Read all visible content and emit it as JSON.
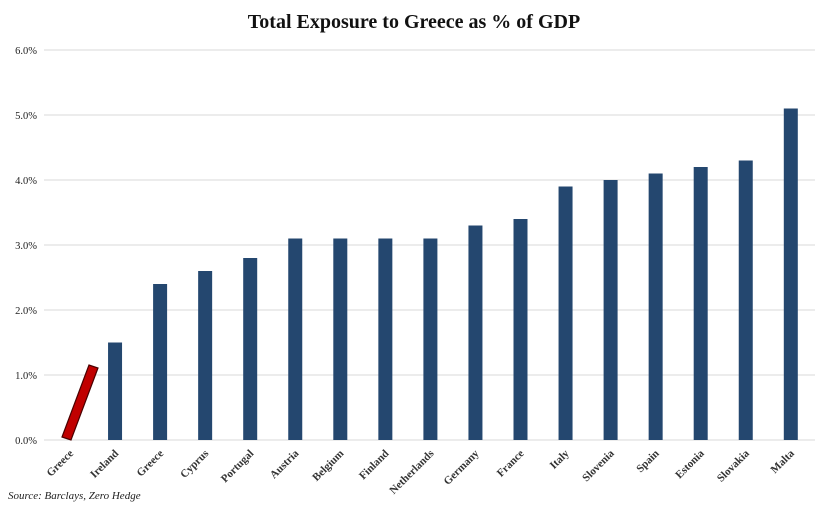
{
  "chart_data": {
    "type": "bar",
    "title": "Total Exposure to Greece as % of GDP",
    "categories": [
      "Greece",
      "Ireland",
      "Greece",
      "Cyprus",
      "Portugal",
      "Austria",
      "Belgium",
      "Finland",
      "Netherlands",
      "Germany",
      "France",
      "Italy",
      "Slovenia",
      "Spain",
      "Estonia",
      "Slovakia",
      "Malta"
    ],
    "values": [
      null,
      1.5,
      2.4,
      2.6,
      2.8,
      3.1,
      3.1,
      3.1,
      3.1,
      3.3,
      3.4,
      3.9,
      4.0,
      4.1,
      4.2,
      4.3,
      5.1
    ],
    "annotation": "red slanted marker at first 'Greece' category",
    "ylim": [
      0,
      6
    ],
    "yticks": [
      "0.0%",
      "1.0%",
      "2.0%",
      "3.0%",
      "4.0%",
      "5.0%",
      "6.0%"
    ],
    "xlabel": "",
    "ylabel": "",
    "grid": true,
    "colors": {
      "bar": "#24476f",
      "grid": "#d9d9d9",
      "marker_fill": "#c00000",
      "marker_edge": "#4a0000"
    }
  },
  "source": "Source: Barclays, Zero Hedge"
}
